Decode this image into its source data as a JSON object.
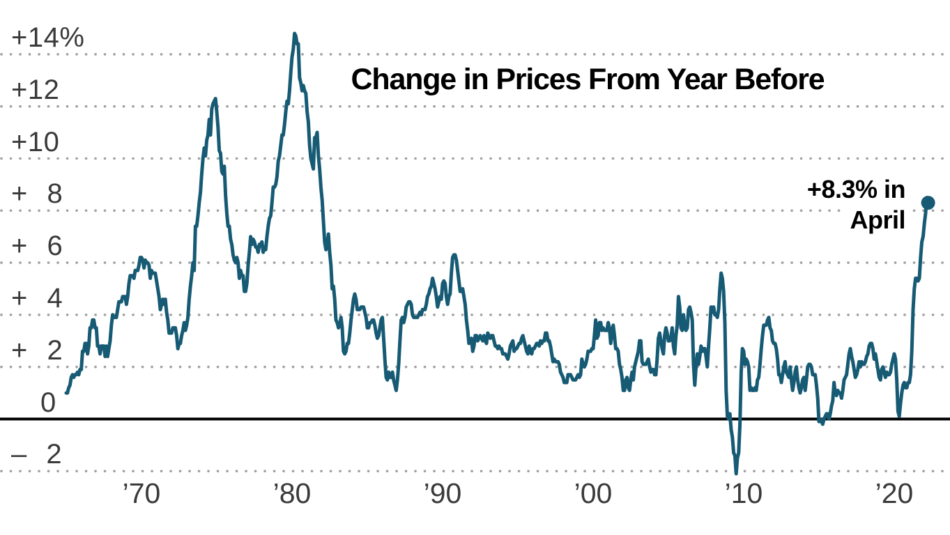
{
  "chart": {
    "title": "Change in Prices From Year Before",
    "annotation": {
      "line1": "+8.3% in",
      "line2": "April"
    }
  },
  "chart_data": {
    "type": "line",
    "title": "Change in Prices From Year Before",
    "series_name": "Change in prices from year before (%)",
    "frequency": "monthly",
    "x_start": {
      "year": 1965,
      "month": 1
    },
    "x_end": {
      "year": 2022,
      "month": 4
    },
    "highlight": {
      "label": "+8.3% in April",
      "value": 8.3,
      "x": "2022-04"
    },
    "y_axis": {
      "range": [
        -3,
        15.6
      ],
      "grid": "dotted",
      "zero_line": "solid",
      "ticks": [
        {
          "label": "+14%",
          "value": 14
        },
        {
          "label": "+12",
          "value": 12
        },
        {
          "label": "+10",
          "value": 10
        },
        {
          "label": "+ 8",
          "value": 8
        },
        {
          "label": "+ 6",
          "value": 6
        },
        {
          "label": "+ 4",
          "value": 4
        },
        {
          "label": "+ 2",
          "value": 2
        },
        {
          "label": "0",
          "value": 0
        },
        {
          "label": "– 2",
          "value": -2
        }
      ]
    },
    "x_axis": {
      "ticks": [
        {
          "label": "’70",
          "year": 1970
        },
        {
          "label": "’80",
          "year": 1980
        },
        {
          "label": "’90",
          "year": 1990
        },
        {
          "label": "’00",
          "year": 2000
        },
        {
          "label": "’10",
          "year": 2010
        },
        {
          "label": "’20",
          "year": 2020
        }
      ]
    },
    "colors": {
      "line": "#165a74",
      "grid": "#a0a0a0",
      "zero_line": "#000000",
      "tick_label": "#3a3a3a",
      "title": "#000000"
    },
    "monthly_values": [
      {
        "year": 1965,
        "v": [
          1.0,
          1.0,
          1.2,
          1.3,
          1.6,
          1.7,
          1.6,
          1.7,
          1.7,
          1.8,
          1.7,
          1.9
        ]
      },
      {
        "year": 1966,
        "v": [
          1.9,
          2.6,
          2.6,
          2.9,
          2.9,
          2.5,
          2.8,
          3.5,
          3.5,
          3.8,
          3.8,
          3.5
        ]
      },
      {
        "year": 1967,
        "v": [
          3.5,
          2.8,
          2.8,
          2.5,
          2.8,
          2.8,
          2.8,
          2.4,
          2.8,
          2.4,
          2.7,
          3.0
        ]
      },
      {
        "year": 1968,
        "v": [
          3.6,
          4.0,
          3.9,
          3.9,
          3.9,
          4.2,
          4.5,
          4.5,
          4.5,
          4.7,
          4.7,
          4.7
        ]
      },
      {
        "year": 1969,
        "v": [
          4.4,
          4.7,
          5.2,
          5.5,
          5.5,
          5.5,
          5.4,
          5.7,
          5.7,
          5.7,
          5.9,
          6.2
        ]
      },
      {
        "year": 1970,
        "v": [
          6.2,
          6.1,
          5.8,
          6.1,
          6.0,
          6.0,
          5.9,
          5.4,
          5.7,
          5.6,
          5.6,
          5.6
        ]
      },
      {
        "year": 1971,
        "v": [
          5.3,
          5.0,
          4.7,
          4.2,
          4.4,
          4.6,
          4.4,
          4.6,
          4.1,
          3.8,
          3.3,
          3.3
        ]
      },
      {
        "year": 1972,
        "v": [
          3.3,
          3.5,
          3.5,
          3.5,
          3.2,
          2.7,
          2.9,
          2.9,
          3.2,
          3.4,
          3.7,
          3.4
        ]
      },
      {
        "year": 1973,
        "v": [
          3.6,
          3.9,
          4.6,
          5.1,
          5.5,
          6.0,
          5.7,
          7.4,
          7.4,
          7.8,
          8.3,
          8.7
        ]
      },
      {
        "year": 1974,
        "v": [
          9.4,
          10.0,
          10.4,
          10.1,
          10.7,
          10.9,
          11.5,
          10.9,
          11.9,
          12.1,
          12.2,
          12.3
        ]
      },
      {
        "year": 1975,
        "v": [
          11.8,
          11.2,
          10.3,
          10.2,
          9.5,
          9.4,
          9.7,
          8.6,
          7.9,
          7.4,
          7.4,
          6.9
        ]
      },
      {
        "year": 1976,
        "v": [
          6.7,
          6.3,
          6.1,
          6.0,
          6.2,
          6.0,
          5.4,
          5.7,
          5.5,
          5.5,
          4.9,
          4.9
        ]
      },
      {
        "year": 1977,
        "v": [
          5.2,
          5.9,
          6.4,
          7.0,
          6.7,
          6.9,
          6.8,
          6.6,
          6.6,
          6.4,
          6.7,
          6.7
        ]
      },
      {
        "year": 1978,
        "v": [
          6.8,
          6.4,
          6.6,
          6.5,
          7.0,
          7.4,
          7.7,
          7.8,
          8.3,
          8.9,
          8.9,
          9.0
        ]
      },
      {
        "year": 1979,
        "v": [
          9.3,
          9.9,
          10.1,
          10.5,
          10.9,
          10.9,
          11.3,
          11.8,
          12.2,
          12.1,
          12.6,
          13.3
        ]
      },
      {
        "year": 1980,
        "v": [
          13.9,
          14.2,
          14.8,
          14.7,
          14.4,
          14.4,
          13.1,
          12.9,
          12.6,
          12.8,
          12.6,
          12.5
        ]
      },
      {
        "year": 1981,
        "v": [
          11.8,
          11.4,
          10.5,
          10.0,
          9.8,
          9.6,
          10.8,
          10.8,
          11.0,
          10.1,
          9.6,
          8.9
        ]
      },
      {
        "year": 1982,
        "v": [
          8.4,
          7.6,
          6.8,
          6.5,
          6.7,
          7.1,
          6.4,
          5.9,
          5.0,
          5.1,
          4.6,
          3.8
        ]
      },
      {
        "year": 1983,
        "v": [
          3.7,
          3.5,
          3.6,
          3.9,
          3.5,
          2.6,
          2.5,
          2.6,
          2.9,
          2.9,
          3.3,
          3.8
        ]
      },
      {
        "year": 1984,
        "v": [
          4.2,
          4.6,
          4.8,
          4.6,
          4.2,
          4.2,
          4.2,
          4.3,
          4.3,
          4.3,
          4.1,
          3.9
        ]
      },
      {
        "year": 1985,
        "v": [
          3.5,
          3.5,
          3.7,
          3.7,
          3.8,
          3.8,
          3.6,
          3.3,
          3.1,
          3.2,
          3.5,
          3.8
        ]
      },
      {
        "year": 1986,
        "v": [
          3.9,
          3.1,
          2.3,
          1.6,
          1.5,
          1.8,
          1.6,
          1.6,
          1.8,
          1.5,
          1.3,
          1.1
        ]
      },
      {
        "year": 1987,
        "v": [
          1.5,
          2.1,
          3.0,
          3.8,
          3.9,
          3.7,
          3.9,
          4.3,
          4.4,
          4.5,
          4.5,
          4.4
        ]
      },
      {
        "year": 1988,
        "v": [
          4.0,
          3.9,
          3.9,
          3.9,
          3.9,
          4.0,
          4.1,
          4.0,
          4.2,
          4.2,
          4.2,
          4.4
        ]
      },
      {
        "year": 1989,
        "v": [
          4.7,
          4.8,
          5.0,
          5.1,
          5.4,
          5.2,
          5.0,
          4.7,
          4.3,
          4.5,
          4.7,
          4.6
        ]
      },
      {
        "year": 1990,
        "v": [
          5.2,
          5.3,
          5.2,
          4.7,
          4.4,
          4.7,
          4.8,
          5.6,
          6.2,
          6.3,
          6.3,
          6.1
        ]
      },
      {
        "year": 1991,
        "v": [
          5.7,
          5.3,
          4.9,
          4.9,
          5.0,
          4.7,
          4.4,
          3.8,
          3.4,
          2.9,
          3.0,
          3.1
        ]
      },
      {
        "year": 1992,
        "v": [
          2.6,
          2.8,
          3.2,
          3.2,
          3.0,
          3.1,
          3.2,
          3.1,
          3.0,
          3.2,
          3.0,
          2.9
        ]
      },
      {
        "year": 1993,
        "v": [
          3.3,
          3.2,
          3.1,
          3.2,
          3.2,
          3.0,
          2.8,
          2.8,
          2.7,
          2.8,
          2.7,
          2.7
        ]
      },
      {
        "year": 1994,
        "v": [
          2.5,
          2.5,
          2.5,
          2.4,
          2.3,
          2.5,
          2.8,
          2.9,
          3.0,
          2.6,
          2.7,
          2.7
        ]
      },
      {
        "year": 1995,
        "v": [
          2.8,
          2.9,
          2.9,
          3.1,
          3.2,
          3.0,
          2.8,
          2.6,
          2.5,
          2.8,
          2.6,
          2.5
        ]
      },
      {
        "year": 1996,
        "v": [
          2.7,
          2.7,
          2.8,
          2.9,
          2.9,
          2.8,
          3.0,
          2.9,
          3.0,
          3.0,
          3.3,
          3.3
        ]
      },
      {
        "year": 1997,
        "v": [
          3.0,
          3.0,
          2.8,
          2.5,
          2.2,
          2.3,
          2.2,
          2.2,
          2.2,
          2.1,
          1.8,
          1.7
        ]
      },
      {
        "year": 1998,
        "v": [
          1.6,
          1.4,
          1.4,
          1.4,
          1.7,
          1.7,
          1.7,
          1.6,
          1.5,
          1.5,
          1.5,
          1.6
        ]
      },
      {
        "year": 1999,
        "v": [
          1.7,
          1.6,
          1.7,
          2.3,
          2.1,
          2.0,
          2.1,
          2.3,
          2.6,
          2.6,
          2.6,
          2.7
        ]
      },
      {
        "year": 2000,
        "v": [
          2.7,
          3.2,
          3.8,
          3.1,
          3.2,
          3.7,
          3.7,
          3.4,
          3.5,
          3.4,
          3.4,
          3.4
        ]
      },
      {
        "year": 2001,
        "v": [
          3.7,
          3.5,
          2.9,
          3.3,
          3.6,
          3.2,
          2.7,
          2.7,
          2.6,
          2.1,
          1.9,
          1.6
        ]
      },
      {
        "year": 2002,
        "v": [
          1.1,
          1.1,
          1.5,
          1.6,
          1.2,
          1.1,
          1.5,
          1.8,
          1.5,
          2.0,
          2.2,
          2.4
        ]
      },
      {
        "year": 2003,
        "v": [
          2.6,
          3.0,
          3.0,
          2.2,
          2.1,
          2.1,
          2.1,
          2.2,
          2.3,
          2.0,
          1.8,
          1.9
        ]
      },
      {
        "year": 2004,
        "v": [
          1.9,
          1.7,
          1.7,
          2.3,
          3.1,
          3.3,
          3.0,
          2.7,
          2.5,
          3.2,
          3.5,
          3.3
        ]
      },
      {
        "year": 2005,
        "v": [
          3.0,
          3.0,
          3.1,
          3.5,
          2.8,
          2.5,
          3.2,
          3.6,
          4.7,
          4.3,
          3.5,
          3.4
        ]
      },
      {
        "year": 2006,
        "v": [
          4.0,
          3.6,
          3.4,
          3.5,
          4.2,
          4.3,
          4.1,
          3.8,
          2.1,
          1.3,
          2.0,
          2.5
        ]
      },
      {
        "year": 2007,
        "v": [
          2.1,
          2.4,
          2.8,
          2.6,
          2.7,
          2.7,
          2.4,
          2.0,
          2.8,
          3.5,
          4.3,
          4.1
        ]
      },
      {
        "year": 2008,
        "v": [
          4.3,
          4.0,
          4.0,
          3.9,
          4.2,
          5.0,
          5.6,
          5.4,
          4.9,
          3.7,
          1.1,
          0.1
        ]
      },
      {
        "year": 2009,
        "v": [
          0.0,
          0.2,
          -0.4,
          -0.7,
          -1.3,
          -1.4,
          -2.1,
          -1.5,
          -1.3,
          -0.2,
          1.8,
          2.7
        ]
      },
      {
        "year": 2010,
        "v": [
          2.6,
          2.1,
          2.3,
          2.2,
          2.0,
          1.1,
          1.2,
          1.1,
          1.1,
          1.2,
          1.1,
          1.5
        ]
      },
      {
        "year": 2011,
        "v": [
          1.6,
          2.1,
          2.7,
          3.2,
          3.6,
          3.6,
          3.6,
          3.8,
          3.9,
          3.5,
          3.4,
          3.0
        ]
      },
      {
        "year": 2012,
        "v": [
          2.9,
          2.9,
          2.7,
          2.3,
          1.7,
          1.7,
          1.4,
          1.7,
          2.0,
          2.2,
          1.8,
          1.7
        ]
      },
      {
        "year": 2013,
        "v": [
          1.6,
          2.0,
          1.5,
          1.1,
          1.4,
          1.8,
          2.0,
          1.5,
          1.2,
          1.0,
          1.2,
          1.5
        ]
      },
      {
        "year": 2014,
        "v": [
          1.6,
          1.1,
          1.5,
          2.0,
          2.1,
          2.1,
          2.0,
          1.7,
          1.7,
          1.7,
          1.3,
          0.8
        ]
      },
      {
        "year": 2015,
        "v": [
          -0.1,
          0.0,
          -0.1,
          -0.2,
          0.0,
          0.1,
          0.2,
          0.2,
          0.0,
          0.2,
          0.5,
          0.7
        ]
      },
      {
        "year": 2016,
        "v": [
          1.4,
          1.0,
          0.9,
          1.1,
          1.0,
          1.0,
          0.8,
          1.1,
          1.5,
          1.6,
          1.7,
          2.1
        ]
      },
      {
        "year": 2017,
        "v": [
          2.5,
          2.7,
          2.4,
          2.2,
          1.9,
          1.6,
          1.7,
          1.9,
          2.2,
          2.0,
          2.2,
          2.1
        ]
      },
      {
        "year": 2018,
        "v": [
          2.1,
          2.2,
          2.4,
          2.5,
          2.8,
          2.9,
          2.9,
          2.7,
          2.3,
          2.5,
          2.2,
          1.9
        ]
      },
      {
        "year": 2019,
        "v": [
          1.6,
          1.5,
          1.9,
          2.0,
          1.8,
          1.6,
          1.8,
          1.7,
          1.7,
          1.8,
          2.1,
          2.3
        ]
      },
      {
        "year": 2020,
        "v": [
          2.5,
          2.3,
          1.5,
          0.3,
          0.1,
          0.6,
          1.0,
          1.3,
          1.4,
          1.2,
          1.2,
          1.4
        ]
      },
      {
        "year": 2021,
        "v": [
          1.4,
          1.7,
          2.6,
          4.2,
          5.0,
          5.4,
          5.4,
          5.3,
          5.4,
          6.2,
          6.8,
          7.0
        ]
      },
      {
        "year": 2022,
        "v": [
          7.5,
          7.9,
          8.5,
          8.3
        ]
      }
    ]
  }
}
